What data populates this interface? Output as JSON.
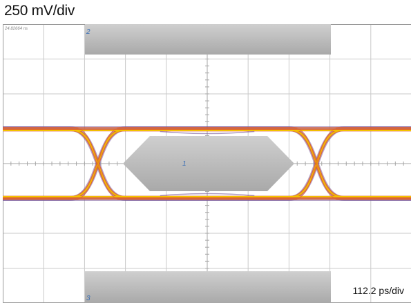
{
  "vertical_scale": "250 mV/div",
  "horizontal_scale": "112.2 ps/div",
  "timestamp": "24.82664 ns",
  "mask_labels": {
    "top": "2",
    "center": "1",
    "bottom": "3"
  },
  "colors": {
    "grid": "#c9c9c9",
    "frame": "#9a9a9a",
    "mask": "#b5b5b5",
    "mask_label": "#3a6fb5",
    "trace_outer": "#7a5a9a",
    "trace_mid": "#e0602a",
    "trace_inner": "#f2c200"
  },
  "chart_data": {
    "type": "eye-diagram",
    "title": "",
    "xlabel": "",
    "ylabel": "",
    "divisions": {
      "x": 10,
      "y": 8
    },
    "levels_mV": {
      "high": 250,
      "low": -250
    },
    "crossing_times_ps": [
      -300,
      300
    ],
    "mask_center_mV": 0
  }
}
